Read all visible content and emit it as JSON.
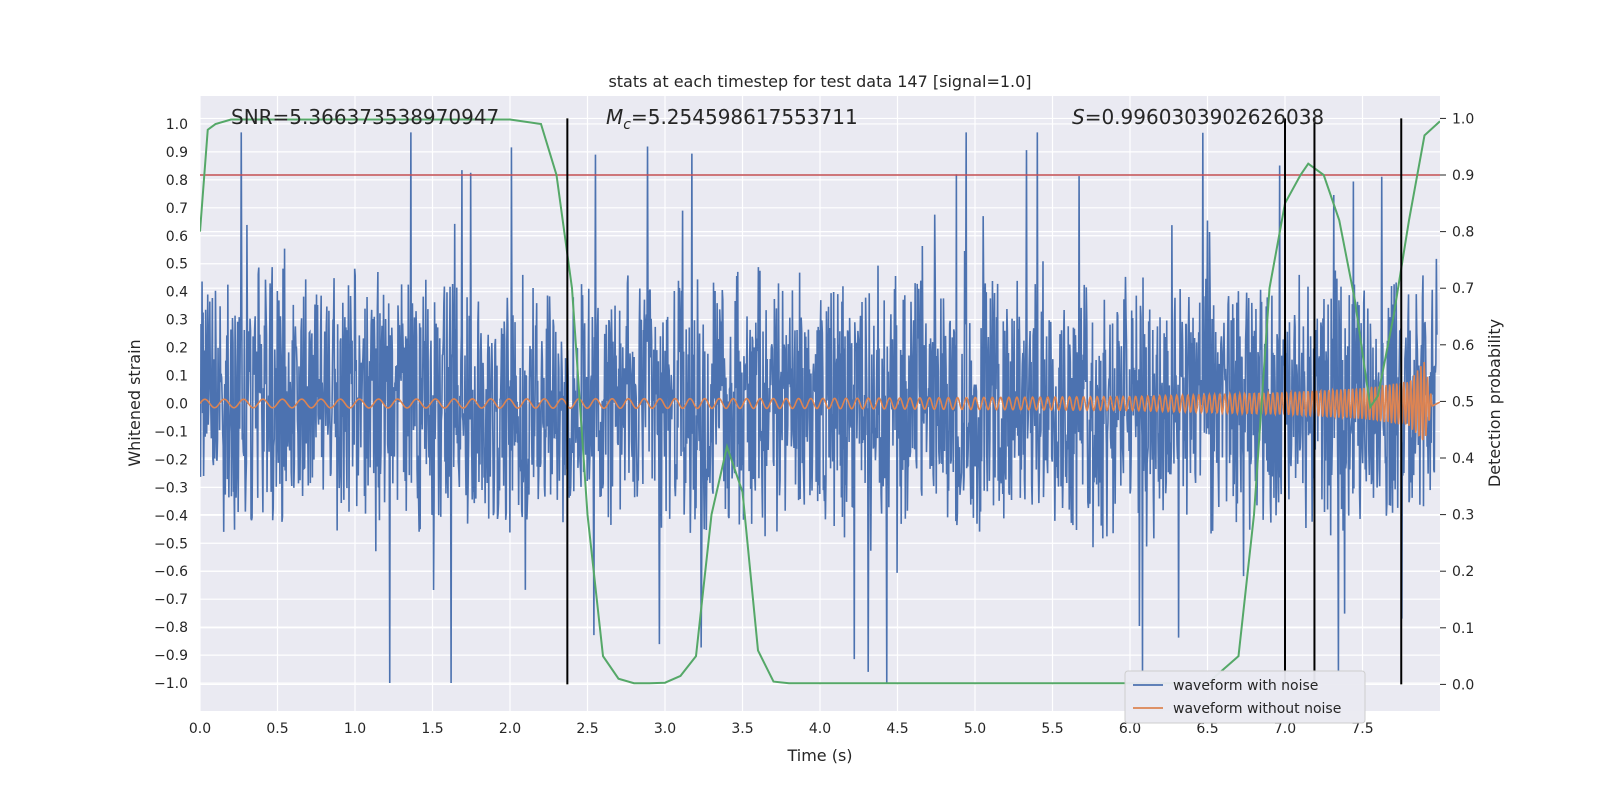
{
  "chart_data": {
    "type": "line",
    "title": "stats at each timestep for test data 147 [signal=1.0]",
    "xlabel": "Time (s)",
    "ylabel": "Whitened strain",
    "y2label": "Detection probability",
    "xlim": [
      0.0,
      8.0
    ],
    "ylim": [
      -1.1,
      1.1
    ],
    "y2lim": [
      -0.047,
      1.0396
    ],
    "xticks": [
      0.0,
      0.5,
      1.0,
      1.5,
      2.0,
      2.5,
      3.0,
      3.5,
      4.0,
      4.5,
      5.0,
      5.5,
      6.0,
      6.5,
      7.0,
      7.5
    ],
    "yticks": [
      1.0,
      0.9,
      0.8,
      0.7,
      0.6,
      0.5,
      0.4,
      0.3,
      0.2,
      0.1,
      0.0,
      -0.1,
      -0.2,
      -0.3,
      -0.4,
      -0.5,
      -0.6,
      -0.7,
      -0.8,
      -0.9,
      -1.0
    ],
    "y2ticks": [
      1.0,
      0.9,
      0.8,
      0.7,
      0.6,
      0.5,
      0.4,
      0.3,
      0.2,
      0.1,
      0.0
    ],
    "grid": true,
    "legend_position": "lower-right",
    "annotations": {
      "snr": "SNR=5.366373538970947",
      "mc_value": "=5.254598617553711",
      "s_value": "=0.9960303902626038"
    },
    "threshold_line": {
      "y2": 0.9,
      "color": "#c44e52"
    },
    "vertical_markers": [
      2.37,
      7.0,
      7.19,
      7.75
    ],
    "series": [
      {
        "name": "waveform with noise",
        "color": "#4c72b0",
        "description_values": "dense noise band roughly within [-0.45, 0.45] with spikes up to about 0.97 and down to about -1.0"
      },
      {
        "name": "waveform without noise",
        "color": "#dd8452",
        "envelope": {
          "x": [
            0.0,
            4.0,
            6.0,
            7.0,
            7.5,
            7.8,
            7.9,
            7.95
          ],
          "amp": [
            0.015,
            0.018,
            0.025,
            0.04,
            0.055,
            0.08,
            0.15,
            0.01
          ]
        }
      },
      {
        "color": "#55a868",
        "axis": "right",
        "x": [
          0.0,
          0.05,
          0.1,
          0.2,
          0.5,
          1.0,
          1.5,
          2.0,
          2.2,
          2.3,
          2.4,
          2.5,
          2.6,
          2.7,
          2.8,
          2.9,
          3.0,
          3.1,
          3.2,
          3.3,
          3.4,
          3.5,
          3.6,
          3.7,
          3.8,
          4.0,
          5.0,
          6.0,
          6.5,
          6.7,
          6.8,
          6.9,
          7.0,
          7.1,
          7.15,
          7.25,
          7.35,
          7.45,
          7.55,
          7.6,
          7.7,
          7.8,
          7.9,
          8.0
        ],
        "values": [
          0.8,
          0.98,
          0.99,
          0.998,
          0.998,
          0.998,
          0.998,
          0.998,
          0.99,
          0.9,
          0.7,
          0.3,
          0.05,
          0.01,
          0.002,
          0.002,
          0.003,
          0.015,
          0.05,
          0.3,
          0.42,
          0.34,
          0.06,
          0.005,
          0.002,
          0.002,
          0.002,
          0.002,
          0.002,
          0.05,
          0.3,
          0.7,
          0.85,
          0.9,
          0.92,
          0.9,
          0.82,
          0.68,
          0.49,
          0.51,
          0.65,
          0.82,
          0.97,
          0.995
        ]
      }
    ]
  }
}
